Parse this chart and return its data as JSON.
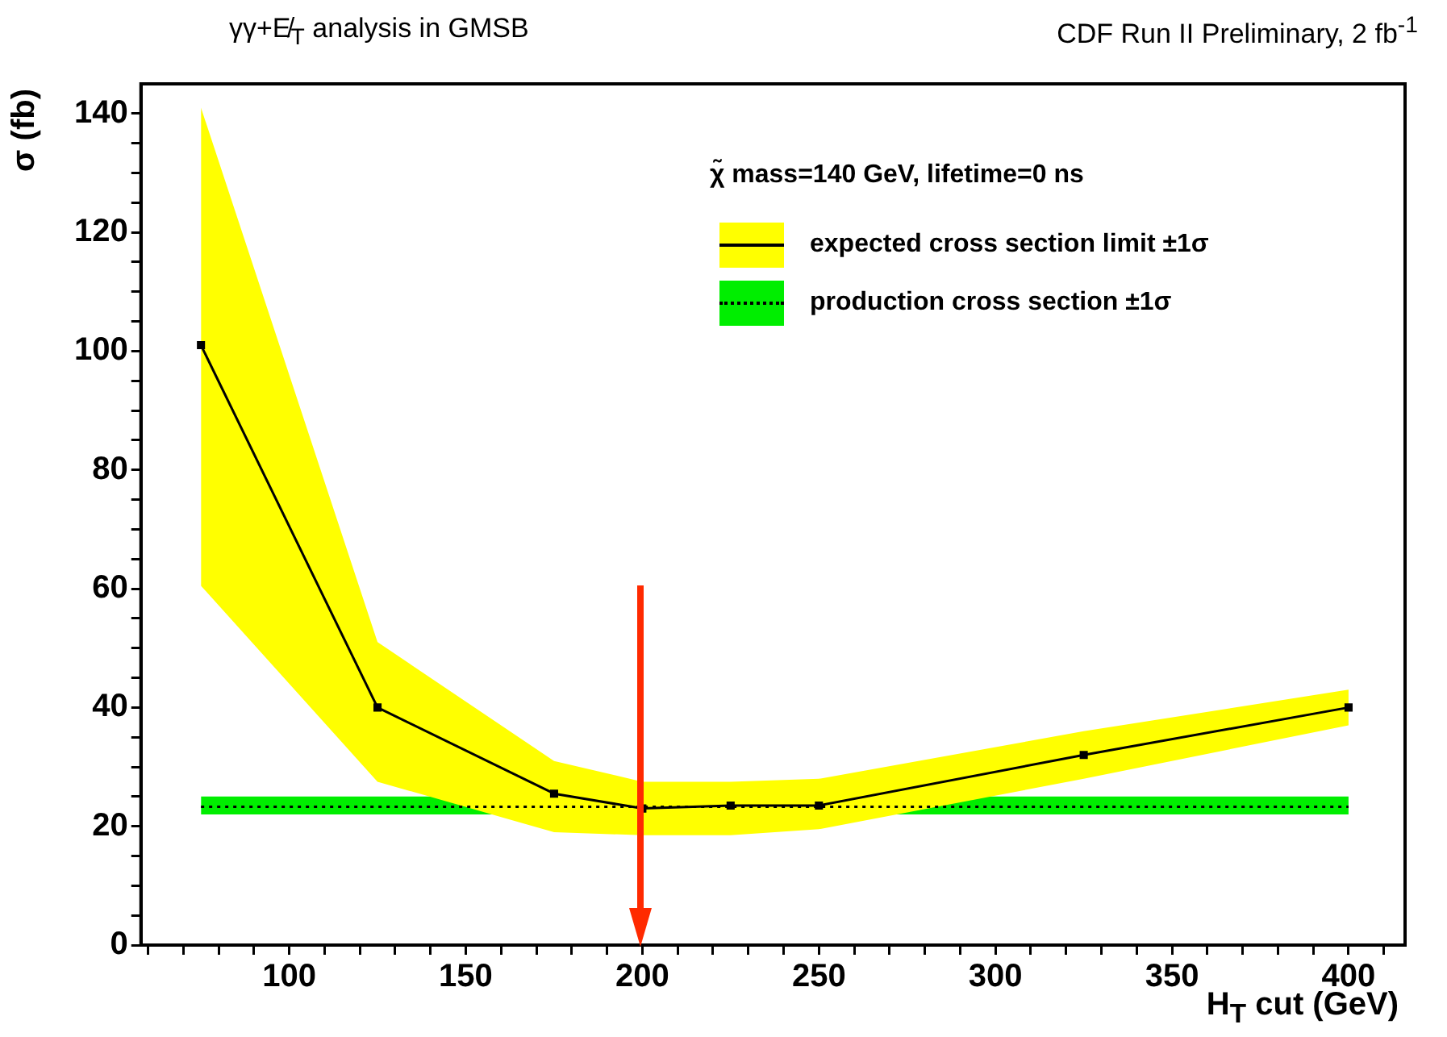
{
  "chart_data": {
    "type": "line",
    "title": "γγ+E̸$_{T}$ analysis in GMSB",
    "subtitle": "CDF Run II Preliminary, 2 fb$^{-1}$",
    "xlabel": "H$_{T}$ cut (GeV)",
    "ylabel": "σ (fb)",
    "legend_title": "χ̃  mass=140 GeV, lifetime=0 ns",
    "legend": "top right",
    "grid": false,
    "xlim": [
      58,
      416
    ],
    "ylim": [
      0,
      145
    ],
    "xticks": [
      {
        "value": 60,
        "label": null
      },
      {
        "value": 70,
        "label": null
      },
      {
        "value": 80,
        "label": null
      },
      {
        "value": 90,
        "label": null
      },
      100,
      {
        "value": 110,
        "label": null
      },
      {
        "value": 120,
        "label": null
      },
      {
        "value": 130,
        "label": null
      },
      {
        "value": 140,
        "label": null
      },
      150,
      {
        "value": 160,
        "label": null
      },
      {
        "value": 170,
        "label": null
      },
      {
        "value": 180,
        "label": null
      },
      {
        "value": 190,
        "label": null
      },
      200,
      {
        "value": 210,
        "label": null
      },
      {
        "value": 220,
        "label": null
      },
      {
        "value": 230,
        "label": null
      },
      {
        "value": 240,
        "label": null
      },
      250,
      {
        "value": 260,
        "label": null
      },
      {
        "value": 270,
        "label": null
      },
      {
        "value": 280,
        "label": null
      },
      {
        "value": 290,
        "label": null
      },
      300,
      {
        "value": 310,
        "label": null
      },
      {
        "value": 320,
        "label": null
      },
      {
        "value": 330,
        "label": null
      },
      {
        "value": 340,
        "label": null
      },
      350,
      {
        "value": 360,
        "label": null
      },
      {
        "value": 370,
        "label": null
      },
      {
        "value": 380,
        "label": null
      },
      {
        "value": 390,
        "label": null
      },
      400,
      {
        "value": 410,
        "label": null
      }
    ],
    "yticks": [
      0,
      {
        "value": 5,
        "label": null
      },
      {
        "value": 10,
        "label": null
      },
      {
        "value": 15,
        "label": null
      },
      20,
      {
        "value": 25,
        "label": null
      },
      {
        "value": 30,
        "label": null
      },
      {
        "value": 35,
        "label": null
      },
      40,
      {
        "value": 45,
        "label": null
      },
      {
        "value": 50,
        "label": null
      },
      {
        "value": 55,
        "label": null
      },
      60,
      {
        "value": 65,
        "label": null
      },
      {
        "value": 70,
        "label": null
      },
      {
        "value": 75,
        "label": null
      },
      80,
      {
        "value": 85,
        "label": null
      },
      {
        "value": 90,
        "label": null
      },
      {
        "value": 95,
        "label": null
      },
      100,
      {
        "value": 105,
        "label": null
      },
      {
        "value": 110,
        "label": null
      },
      {
        "value": 115,
        "label": null
      },
      120,
      {
        "value": 125,
        "label": null
      },
      {
        "value": 130,
        "label": null
      },
      {
        "value": 135,
        "label": null
      },
      140
    ],
    "series": [
      {
        "name": "expected cross section limit ±1σ",
        "color": "#000000",
        "marker": "square",
        "line_style": "solid",
        "x": [
          75,
          125,
          175,
          200,
          225,
          250,
          325,
          400
        ],
        "values": [
          101,
          40,
          25.5,
          23,
          23.5,
          23.5,
          32,
          40
        ],
        "lower": [
          60.5,
          27.5,
          19,
          18.5,
          18.5,
          19.5,
          28,
          37
        ],
        "upper": [
          141,
          51,
          31,
          27.5,
          27.5,
          28,
          36,
          43
        ]
      },
      {
        "name": "production cross section ±1σ",
        "color": "#000000",
        "marker": "none",
        "line_style": "dotted",
        "x": [
          75,
          400
        ],
        "values": [
          23.3,
          23.3
        ],
        "lower": [
          22,
          22
        ],
        "upper": [
          25,
          25
        ]
      }
    ]
  }
}
